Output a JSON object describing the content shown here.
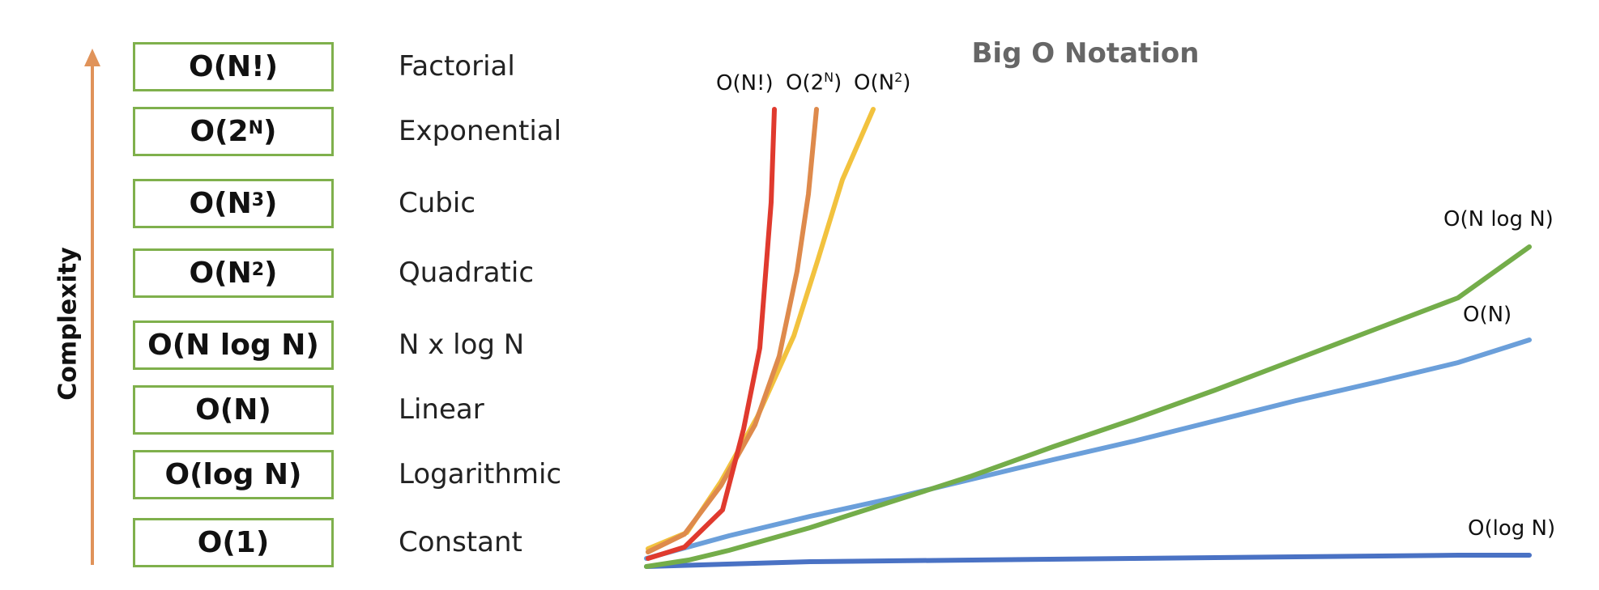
{
  "title": "Big O Notation",
  "axis_label": "Complexity",
  "rows": [
    {
      "base": "O(N!)",
      "sup": "",
      "tail": "",
      "name": "Factorial"
    },
    {
      "base": "O(2",
      "sup": "N",
      "tail": ")",
      "name": "Exponential"
    },
    {
      "base": "O(N",
      "sup": "3",
      "tail": ")",
      "name": "Cubic"
    },
    {
      "base": "O(N",
      "sup": "2",
      "tail": ")",
      "name": "Quadratic"
    },
    {
      "base": "O(N log N)",
      "sup": "",
      "tail": "",
      "name": "N x log N"
    },
    {
      "base": "O(N)",
      "sup": "",
      "tail": "",
      "name": "Linear"
    },
    {
      "base": "O(log N)",
      "sup": "",
      "tail": "",
      "name": "Logarithmic"
    },
    {
      "base": "O(1)",
      "sup": "",
      "tail": "",
      "name": "Constant"
    }
  ],
  "curve_labels": {
    "factorial": "O(N!)",
    "exponential": {
      "base": "O(2",
      "sup": "N",
      "tail": ")"
    },
    "quadratic": {
      "base": "O(N",
      "sup": "2",
      "tail": ")"
    },
    "nlogn": "O(N log N)",
    "linear": "O(N)",
    "logn": "O(log N)"
  },
  "colors": {
    "box_border": "#7fb04c",
    "arrow": "#e0935a",
    "factorial": "#e03a2e",
    "exponential": "#de8a4c",
    "quadratic": "#f2c23e",
    "nlogn": "#74ad4a",
    "linear": "#6b9fda",
    "logn": "#4a72c4"
  }
}
